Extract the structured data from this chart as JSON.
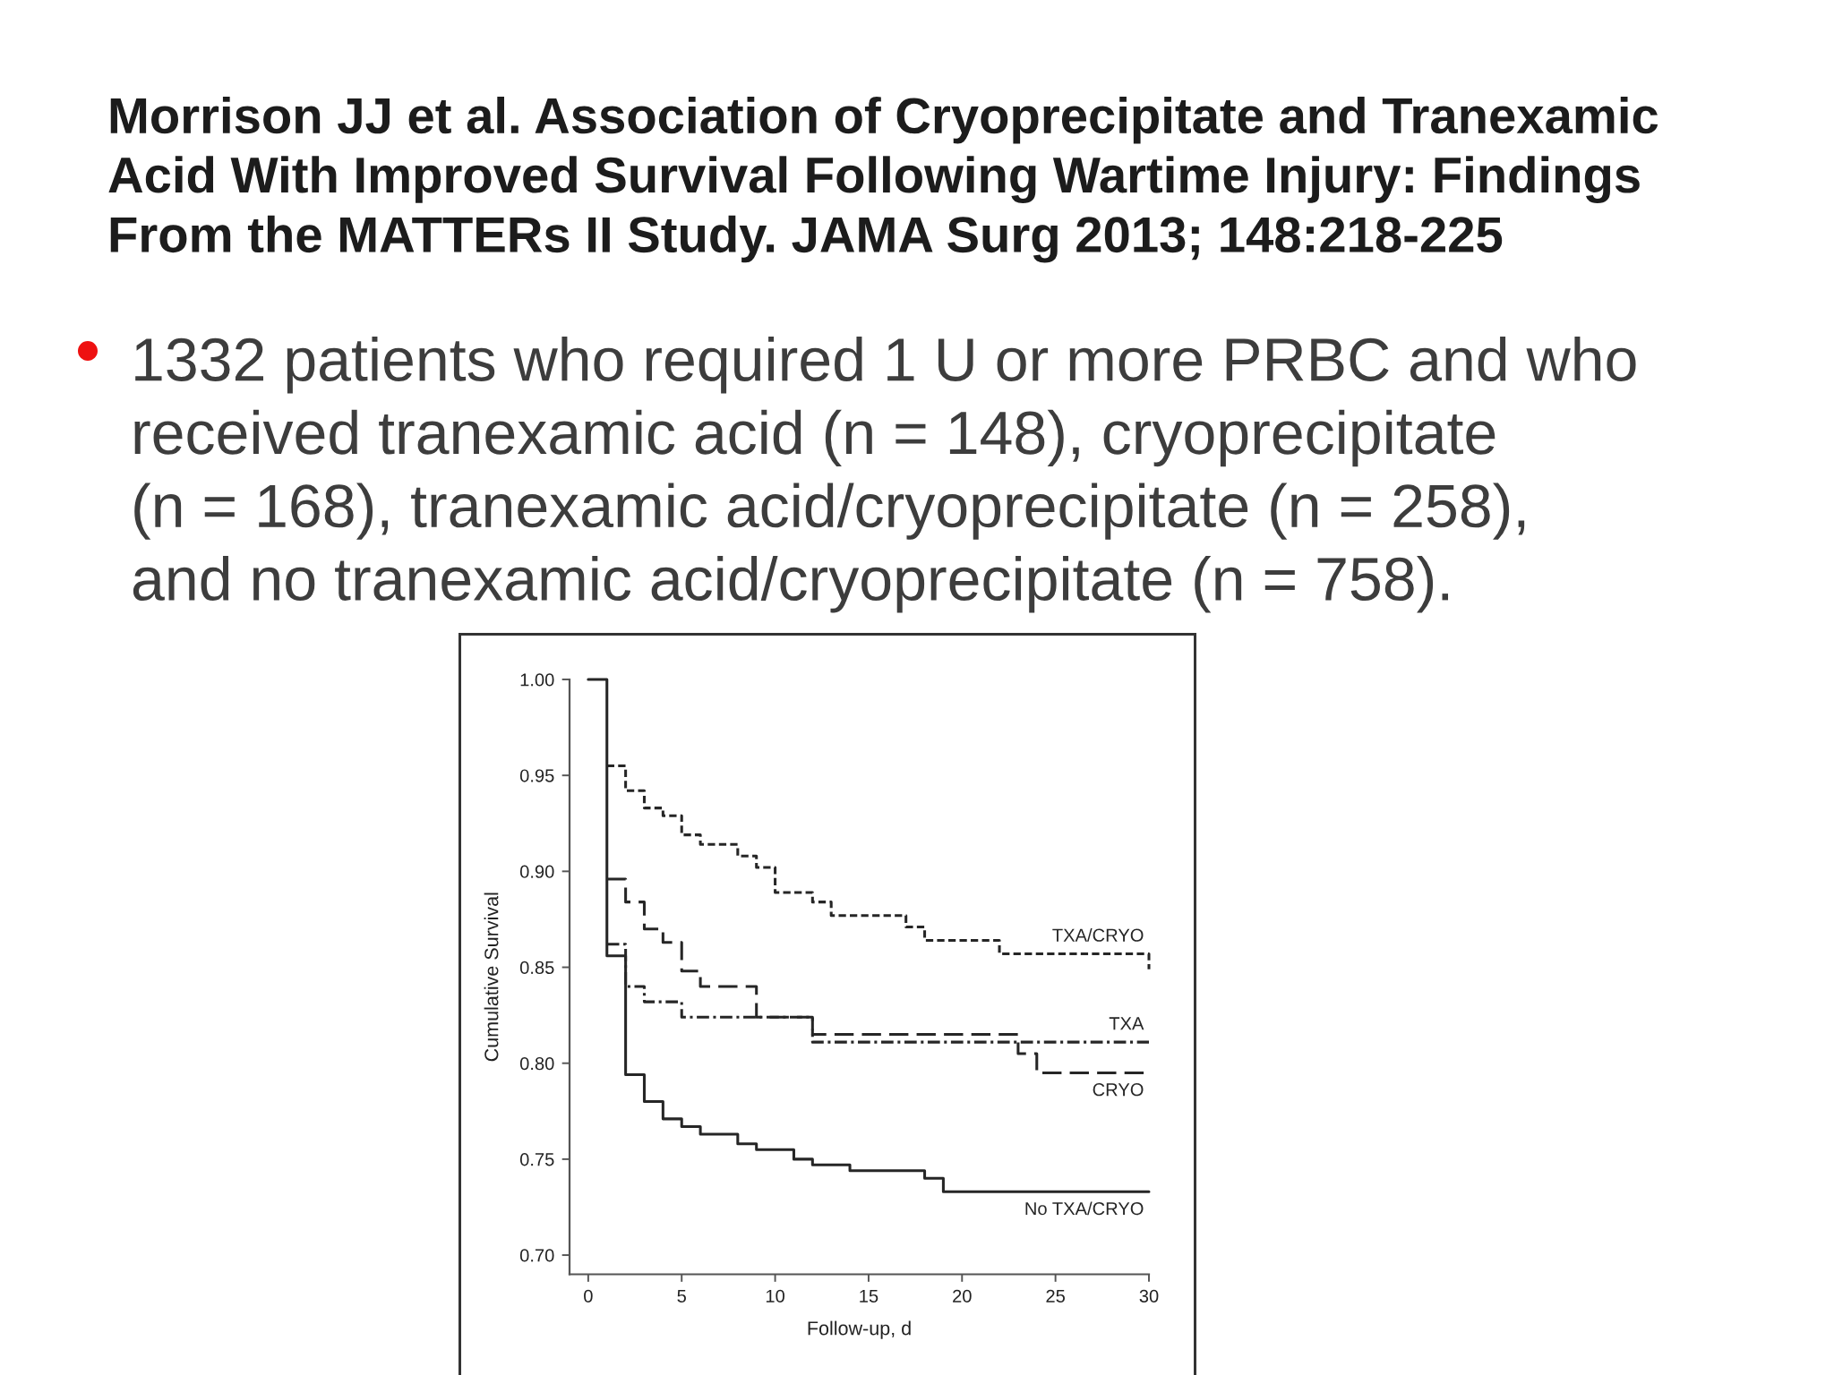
{
  "chart_data": {
    "type": "step",
    "title": "Morrison JJ et al. Association of Cryoprecipitate and Tranexamic Acid With Improved Survival Following Wartime Injury: Findings From the MATTERs II Study. JAMA Surg 2013; 148:218-225",
    "annotations": [
      "1332 patients who required 1 U or more PRBC and who received tranexamic acid (n = 148), cryoprecipitate (n = 168), tranexamic acid/cryoprecipitate (n = 258), and no tranexamic acid/cryoprecipitate (n = 758)."
    ],
    "xlabel": "Follow-up, d",
    "ylabel": "Cumulative Survival",
    "xlim": [
      -1,
      30
    ],
    "xticks": [
      0,
      5,
      10,
      15,
      20,
      25,
      30
    ],
    "ylim": [
      0.69,
      1.0
    ],
    "yticks": [
      {
        "value": 0.7,
        "label": "0.70"
      },
      0.75,
      {
        "value": 0.8,
        "label": "0.80"
      },
      0.85,
      {
        "value": 0.9,
        "label": "0.90"
      },
      0.95,
      {
        "value": 1.0,
        "label": "1.00"
      }
    ],
    "series": [
      {
        "name": "TXA/CRYO",
        "color": "#262626",
        "line_style": "dotted",
        "x": [
          1,
          2,
          3,
          4,
          5,
          6,
          8,
          9,
          10,
          12,
          13,
          17,
          18,
          22,
          30
        ],
        "values": [
          0.955,
          0.942,
          0.933,
          0.929,
          0.919,
          0.914,
          0.908,
          0.902,
          0.889,
          0.884,
          0.877,
          0.871,
          0.864,
          0.857,
          0.849
        ]
      },
      {
        "name": "TXA",
        "color": "#262626",
        "line_style": "dashdot",
        "x": [
          1,
          2,
          3,
          5,
          12,
          30
        ],
        "values": [
          0.862,
          0.84,
          0.832,
          0.824,
          0.811,
          0.811
        ]
      },
      {
        "name": "CRYO",
        "color": "#262626",
        "line_style": "dashed",
        "x": [
          1,
          2,
          3,
          4,
          5,
          6,
          9,
          12,
          23,
          24,
          30
        ],
        "values": [
          0.896,
          0.884,
          0.87,
          0.863,
          0.848,
          0.84,
          0.824,
          0.815,
          0.805,
          0.795,
          0.795
        ]
      },
      {
        "name": "No TXA/CRYO",
        "color": "#262626",
        "line_style": "solid",
        "x": [
          0,
          1,
          2,
          3,
          4,
          5,
          6,
          8,
          9,
          11,
          12,
          14,
          18,
          19,
          30
        ],
        "values": [
          1.0,
          0.856,
          0.794,
          0.78,
          0.771,
          0.767,
          0.763,
          0.758,
          0.755,
          0.75,
          0.747,
          0.744,
          0.74,
          0.733,
          0.733
        ]
      }
    ]
  }
}
